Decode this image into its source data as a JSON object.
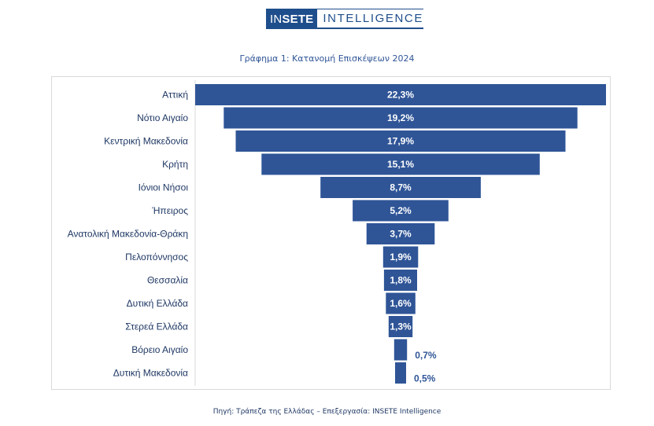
{
  "header": {
    "logo_prefix_in": "IN",
    "logo_prefix_sete": "SETE",
    "logo_word": "INTELLIGENCE"
  },
  "footnote": "Πηγή: Τράπεζα της Ελλάδας – Επεξεργασία: INSETE Intelligence",
  "colors": {
    "bar": "#2f5597",
    "label_text": "#1f3864",
    "bar_text": "#ffffff",
    "axis": "#d9d9d9"
  },
  "chart_data": {
    "type": "bar",
    "orientation": "horizontal-funnel",
    "title": "Γράφημα 1: Κατανομή Επισκέψεων 2024",
    "categories": [
      "Αττική",
      "Νότιο Αιγαίο",
      "Κεντρική Μακεδονία",
      "Κρήτη",
      "Ιόνιοι Νήσοι",
      "Ήπειρος",
      "Ανατολική Μακεδονία-Θράκη",
      "Πελοπόννησος",
      "Θεσσαλία",
      "Δυτική Ελλάδα",
      "Στερεά Ελλάδα",
      "Βόρειο Αιγαίο",
      "Δυτική Μακεδονία"
    ],
    "values": [
      22.3,
      19.2,
      17.9,
      15.1,
      8.7,
      5.2,
      3.7,
      1.9,
      1.8,
      1.6,
      1.3,
      0.7,
      0.5
    ],
    "data_labels": [
      "22,3%",
      "19,2%",
      "17,9%",
      "15,1%",
      "8,7%",
      "5,2%",
      "3,7%",
      "1,9%",
      "1,8%",
      "1,6%",
      "1,3%",
      "0,7%",
      "0,5%"
    ],
    "unit": "%",
    "grid": false,
    "legend": "none"
  }
}
